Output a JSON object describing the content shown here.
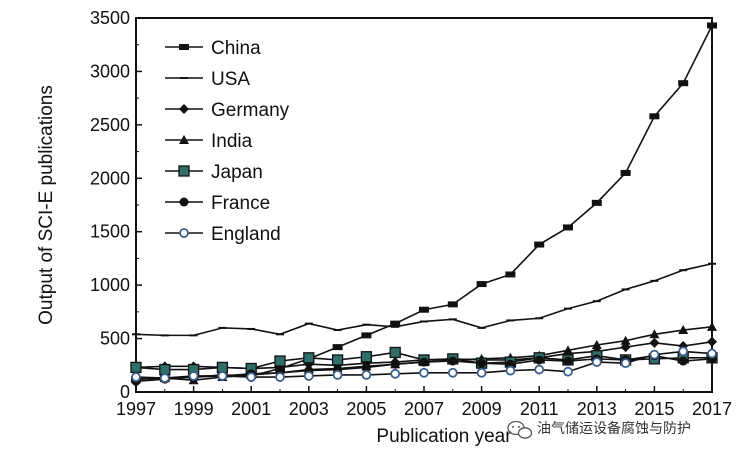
{
  "chart_data": {
    "type": "line",
    "xlabel": "Publication year",
    "ylabel": "Output of SCI-E publications",
    "xlim": [
      1997,
      2017
    ],
    "ylim": [
      0,
      3500
    ],
    "xticks": [
      1997,
      1999,
      2001,
      2003,
      2005,
      2007,
      2009,
      2011,
      2013,
      2015,
      2017
    ],
    "yticks": [
      0,
      500,
      1000,
      1500,
      2000,
      2500,
      3000,
      3500
    ],
    "grid": false,
    "legend_position": "top-left",
    "x": [
      1997,
      1998,
      1999,
      2000,
      2001,
      2002,
      2003,
      2004,
      2005,
      2006,
      2007,
      2008,
      2009,
      2010,
      2011,
      2012,
      2013,
      2014,
      2015,
      2016,
      2017
    ],
    "series": [
      {
        "name": "China",
        "marker": "square-bar",
        "values": [
          120,
          130,
          140,
          160,
          150,
          220,
          310,
          420,
          530,
          640,
          770,
          820,
          1010,
          1100,
          1380,
          1540,
          1770,
          2050,
          2580,
          2890,
          3430
        ]
      },
      {
        "name": "USA",
        "marker": "dash",
        "values": [
          540,
          530,
          530,
          600,
          590,
          540,
          640,
          580,
          630,
          610,
          660,
          680,
          600,
          670,
          690,
          780,
          850,
          960,
          1040,
          1140,
          1200
        ]
      },
      {
        "name": "Germany",
        "marker": "diamond",
        "values": [
          230,
          240,
          240,
          230,
          220,
          230,
          260,
          250,
          270,
          280,
          300,
          310,
          300,
          300,
          320,
          360,
          380,
          420,
          460,
          430,
          470
        ]
      },
      {
        "name": "India",
        "marker": "triangle",
        "values": [
          120,
          130,
          110,
          140,
          160,
          180,
          210,
          220,
          240,
          260,
          280,
          300,
          310,
          320,
          340,
          390,
          440,
          480,
          540,
          580,
          610
        ]
      },
      {
        "name": "Japan",
        "marker": "square-open",
        "values": [
          230,
          210,
          210,
          230,
          220,
          290,
          320,
          300,
          330,
          370,
          300,
          310,
          270,
          280,
          320,
          300,
          340,
          300,
          310,
          320,
          320
        ]
      },
      {
        "name": "France",
        "marker": "circle",
        "values": [
          100,
          120,
          140,
          150,
          170,
          180,
          200,
          210,
          230,
          260,
          280,
          290,
          270,
          260,
          300,
          290,
          310,
          300,
          340,
          290,
          310
        ]
      },
      {
        "name": "England",
        "marker": "circle-open",
        "values": [
          140,
          130,
          150,
          150,
          140,
          140,
          150,
          160,
          160,
          170,
          180,
          180,
          180,
          200,
          210,
          190,
          280,
          270,
          350,
          380,
          360
        ]
      }
    ]
  },
  "watermark": {
    "text": "油气储运设备腐蚀与防护",
    "icon": "wechat-icon"
  },
  "colors": {
    "line": "#111111",
    "japan_marker": "#2f6f6a",
    "england_marker": "#3a5f8a"
  }
}
